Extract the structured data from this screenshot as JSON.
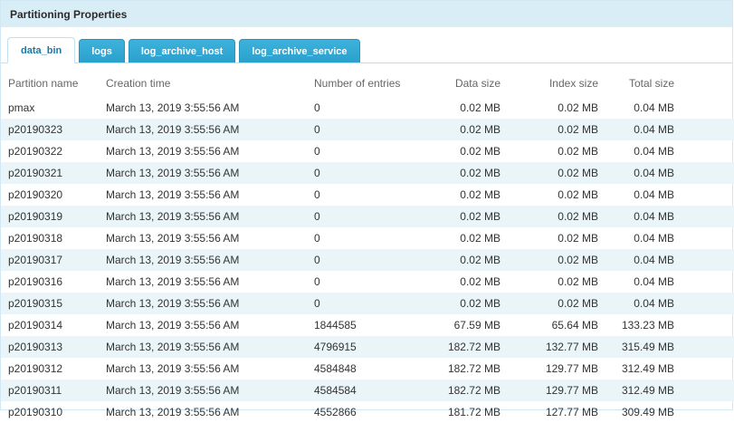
{
  "panel": {
    "title": "Partitioning Properties"
  },
  "tabs": [
    {
      "label": "data_bin",
      "active": true
    },
    {
      "label": "logs",
      "active": false
    },
    {
      "label": "log_archive_host",
      "active": false
    },
    {
      "label": "log_archive_service",
      "active": false
    }
  ],
  "table": {
    "columns": [
      "Partition name",
      "Creation time",
      "Number of entries",
      "Data size",
      "Index size",
      "Total size"
    ],
    "rows": [
      [
        "pmax",
        "March 13, 2019 3:55:56 AM",
        "0",
        "0.02 MB",
        "0.02 MB",
        "0.04 MB"
      ],
      [
        "p20190323",
        "March 13, 2019 3:55:56 AM",
        "0",
        "0.02 MB",
        "0.02 MB",
        "0.04 MB"
      ],
      [
        "p20190322",
        "March 13, 2019 3:55:56 AM",
        "0",
        "0.02 MB",
        "0.02 MB",
        "0.04 MB"
      ],
      [
        "p20190321",
        "March 13, 2019 3:55:56 AM",
        "0",
        "0.02 MB",
        "0.02 MB",
        "0.04 MB"
      ],
      [
        "p20190320",
        "March 13, 2019 3:55:56 AM",
        "0",
        "0.02 MB",
        "0.02 MB",
        "0.04 MB"
      ],
      [
        "p20190319",
        "March 13, 2019 3:55:56 AM",
        "0",
        "0.02 MB",
        "0.02 MB",
        "0.04 MB"
      ],
      [
        "p20190318",
        "March 13, 2019 3:55:56 AM",
        "0",
        "0.02 MB",
        "0.02 MB",
        "0.04 MB"
      ],
      [
        "p20190317",
        "March 13, 2019 3:55:56 AM",
        "0",
        "0.02 MB",
        "0.02 MB",
        "0.04 MB"
      ],
      [
        "p20190316",
        "March 13, 2019 3:55:56 AM",
        "0",
        "0.02 MB",
        "0.02 MB",
        "0.04 MB"
      ],
      [
        "p20190315",
        "March 13, 2019 3:55:56 AM",
        "0",
        "0.02 MB",
        "0.02 MB",
        "0.04 MB"
      ],
      [
        "p20190314",
        "March 13, 2019 3:55:56 AM",
        "1844585",
        "67.59 MB",
        "65.64 MB",
        "133.23 MB"
      ],
      [
        "p20190313",
        "March 13, 2019 3:55:56 AM",
        "4796915",
        "182.72 MB",
        "132.77 MB",
        "315.49 MB"
      ],
      [
        "p20190312",
        "March 13, 2019 3:55:56 AM",
        "4584848",
        "182.72 MB",
        "129.77 MB",
        "312.49 MB"
      ],
      [
        "p20190311",
        "March 13, 2019 3:55:56 AM",
        "4584584",
        "182.72 MB",
        "129.77 MB",
        "312.49 MB"
      ],
      [
        "p20190310",
        "March 13, 2019 3:55:56 AM",
        "4552866",
        "181.72 MB",
        "127.77 MB",
        "309.49 MB"
      ]
    ]
  },
  "colors": {
    "title_bar_bg": "#d9edf6",
    "tab_inactive_bg": "#2fa8d5",
    "tab_active_text": "#1978a8",
    "tab_border": "#bfe0ef",
    "row_alt_bg": "#eaf5fa",
    "header_text": "#666666",
    "cell_text": "#333333"
  }
}
